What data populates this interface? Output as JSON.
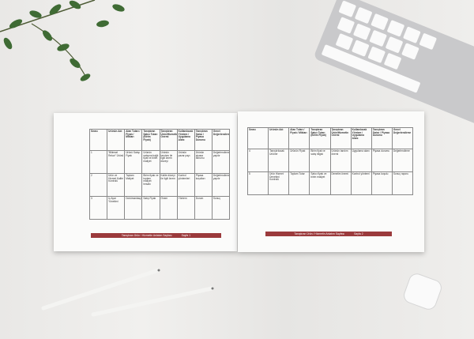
{
  "left_page": {
    "headers": [
      "Sırası",
      "Ürünün Adı",
      "Alan Tutarı / Fiyatı / Miktarı",
      "Tanıştıran Satıcı Tutarı (Birim Fiyatı)",
      "Tanıştıran Ürün/Hizmetin Önemi",
      "Kullanılacak Yöntem / Uygulama Alanı",
      "Tanıştıran Satıcı / Piyasa Durumu",
      "Genel Değerlendirme"
    ],
    "rows": [
      [
        "1",
        "“Bilimsel Rekor” Ürünü",
        "Ürünü Satışı Fiyatı",
        "Ürünün satışına bağlı fiyat ve birim maliyet",
        "Ürünün tanıtımı ile ilgili önem düzeyi",
        "Ürünün pazar payı",
        "Ürünün piyasa durumu",
        "Değerlendirme yapılır"
      ],
      [
        "2",
        "Ürün ve Hizmet Kalite Kontrolü",
        "Toplam Maliyet",
        "Birim fiyatı ve toplam maliyet hesabı",
        "Kalite düzeyi ile ilgili önem",
        "Kontrol yöntemleri",
        "Piyasa koşulları",
        "Değerlendirme yapılır"
      ],
      [
        "3",
        "İç Ayar Yönetimi",
        "Dokümantasyon",
        "Satış Fiyatı",
        "Önem",
        "Yöntem",
        "Durum",
        "Sonuç"
      ]
    ],
    "footer": "Tanıştıran Ürün / Hizmetin Anlatım Sayfası",
    "page": "Sayfa 1"
  },
  "right_page": {
    "headers": [
      "Sırası",
      "Ürünün Adı",
      "Alan Tutarı / Fiyatı / Miktarı",
      "Tanıştıran Satıcı Tutarı (Birim Fiyatı)",
      "Tanıştıran Ürün/Hizmetin Önemi",
      "Kullanılacak Yöntem / Uygulama Alanı",
      "Tanıştıran Satıcı / Piyasa Durumu",
      "Genel Değerlendirme"
    ],
    "rows": [
      [
        "4",
        "Tanıştırılacak Ürünler",
        "Ürünün Fiyatı",
        "Birim fiyat ve satış bilgisi",
        "Ürünün tanıtım önemi",
        "Uygulama alanı",
        "Piyasa durumu",
        "Değerlendirme"
      ],
      [
        "5",
        "Ürün Hizmet Denetimi Kontrolü",
        "Toplam Tutar",
        "Satıcı fiyatı ve birim maliyet",
        "Denetim önemi",
        "Kontrol yöntemi",
        "Piyasa koşulu",
        "Sonuç raporu"
      ]
    ],
    "footer": "Tanıştıran Ürün / Hizmetin Anlatım Sayfası",
    "page": "Sayfa 2"
  }
}
